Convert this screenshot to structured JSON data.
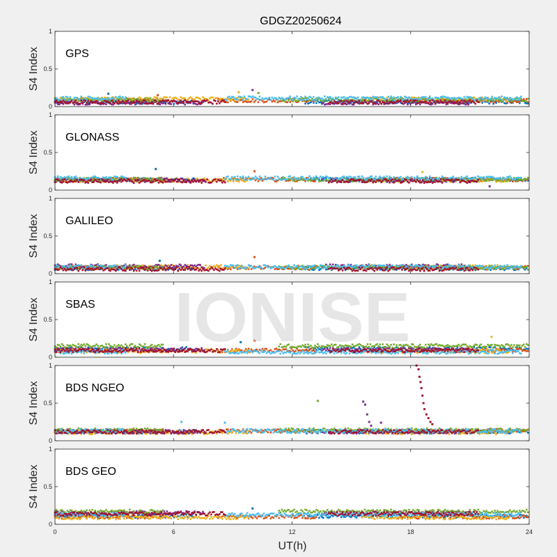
{
  "title": "GDGZ20250624",
  "watermark": "IONISE",
  "xlabel": "UT(h)",
  "colors": [
    "#0072BD",
    "#D95319",
    "#EDB120",
    "#7E2F8E",
    "#77AC30",
    "#4DBEEE",
    "#A2142F"
  ],
  "chart_data": [
    {
      "type": "scatter",
      "panel": "GPS",
      "ylabel": "S4 Index",
      "xlim": [
        0,
        24
      ],
      "ylim": [
        0,
        1
      ],
      "xticks": [
        0,
        6,
        12,
        18,
        24
      ],
      "yticks": [
        0,
        0.5,
        1
      ],
      "series_levels": [
        0.06,
        0.08,
        0.1,
        0.05,
        0.09,
        0.11,
        0.06
      ],
      "spikes": [
        {
          "x": 2.7,
          "y": 0.17
        },
        {
          "x": 5.2,
          "y": 0.15
        },
        {
          "x": 9.3,
          "y": 0.19
        },
        {
          "x": 10.0,
          "y": 0.22
        },
        {
          "x": 10.3,
          "y": 0.18
        }
      ]
    },
    {
      "type": "scatter",
      "panel": "GLONASS",
      "ylabel": "S4 Index",
      "xlim": [
        0,
        24
      ],
      "ylim": [
        0,
        1
      ],
      "xticks": [
        0,
        6,
        12,
        18,
        24
      ],
      "yticks": [
        0,
        0.5,
        1
      ],
      "series_levels": [
        0.14,
        0.14,
        0.13,
        0.13,
        0.14,
        0.16,
        0.12
      ],
      "spikes": [
        {
          "x": 5.1,
          "y": 0.28
        },
        {
          "x": 10.1,
          "y": 0.25
        },
        {
          "x": 18.6,
          "y": 0.24
        },
        {
          "x": 22.0,
          "y": 0.05
        }
      ]
    },
    {
      "type": "scatter",
      "panel": "GALILEO",
      "ylabel": "S4 Index",
      "xlim": [
        0,
        24
      ],
      "ylim": [
        0,
        1
      ],
      "xticks": [
        0,
        6,
        12,
        18,
        24
      ],
      "yticks": [
        0,
        0.5,
        1
      ],
      "series_levels": [
        0.07,
        0.08,
        0.09,
        0.1,
        0.08,
        0.09,
        0.06
      ],
      "spikes": [
        {
          "x": 5.3,
          "y": 0.17
        },
        {
          "x": 10.1,
          "y": 0.22
        }
      ]
    },
    {
      "type": "scatter",
      "panel": "SBAS",
      "ylabel": "S4 Index",
      "xlim": [
        0,
        24
      ],
      "ylim": [
        0,
        1
      ],
      "xticks": [
        0,
        6,
        12,
        18,
        24
      ],
      "yticks": [
        0,
        0.5,
        1
      ],
      "series_levels": [
        0.11,
        0.09,
        0.08,
        0.1,
        0.15,
        0.07,
        0.09
      ],
      "spikes": [
        {
          "x": 9.4,
          "y": 0.2
        },
        {
          "x": 10.1,
          "y": 0.22
        },
        {
          "x": 22.1,
          "y": 0.27
        }
      ]
    },
    {
      "type": "scatter",
      "panel": "BDS NGEO",
      "ylabel": "S4 Index",
      "xlim": [
        0,
        24
      ],
      "ylim": [
        0,
        1
      ],
      "xticks": [
        0,
        6,
        12,
        18,
        24
      ],
      "yticks": [
        0,
        0.5,
        1
      ],
      "series_levels": [
        0.12,
        0.13,
        0.11,
        0.12,
        0.14,
        0.13,
        0.12
      ],
      "spikes": [
        {
          "x": 13.3,
          "y": 0.53
        },
        {
          "x": 15.6,
          "y": 0.52
        },
        {
          "x": 15.7,
          "y": 0.48
        },
        {
          "x": 15.8,
          "y": 0.35
        },
        {
          "x": 15.9,
          "y": 0.25
        },
        {
          "x": 16.0,
          "y": 0.2
        },
        {
          "x": 16.5,
          "y": 0.24
        },
        {
          "x": 18.3,
          "y": 1.0
        },
        {
          "x": 18.4,
          "y": 0.95
        },
        {
          "x": 18.45,
          "y": 0.85
        },
        {
          "x": 18.5,
          "y": 0.78
        },
        {
          "x": 18.55,
          "y": 0.7
        },
        {
          "x": 18.6,
          "y": 0.6
        },
        {
          "x": 18.65,
          "y": 0.5
        },
        {
          "x": 18.7,
          "y": 0.42
        },
        {
          "x": 18.8,
          "y": 0.35
        },
        {
          "x": 18.9,
          "y": 0.3
        },
        {
          "x": 19.0,
          "y": 0.25
        },
        {
          "x": 19.1,
          "y": 0.22
        },
        {
          "x": 6.4,
          "y": 0.25
        },
        {
          "x": 8.6,
          "y": 0.24
        }
      ]
    },
    {
      "type": "scatter",
      "panel": "BDS GEO",
      "ylabel": "S4 Index",
      "xlim": [
        0,
        24
      ],
      "ylim": [
        0,
        1
      ],
      "xticks": [
        0,
        6,
        12,
        18,
        24
      ],
      "yticks": [
        0,
        0.5,
        1
      ],
      "series_levels": [
        0.11,
        0.1,
        0.09,
        0.15,
        0.17,
        0.13,
        0.14
      ],
      "spikes": [
        {
          "x": 10.0,
          "y": 0.21
        }
      ]
    }
  ]
}
